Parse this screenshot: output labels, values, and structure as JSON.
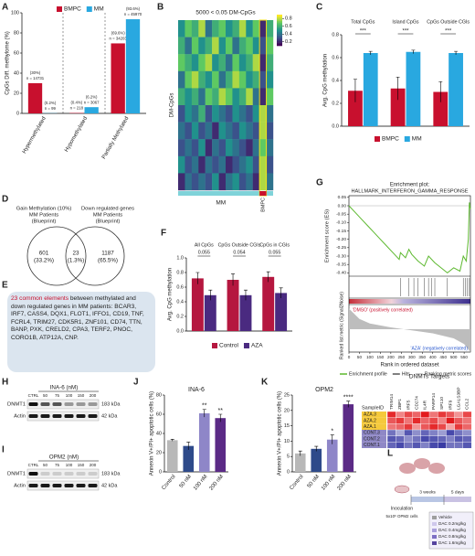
{
  "panel_letters": [
    "A",
    "B",
    "C",
    "D",
    "E",
    "F",
    "G",
    "H",
    "I",
    "J",
    "K",
    "L"
  ],
  "chart_data": [
    {
      "type": "bar",
      "ylabel": "CpGs Diff. methylome (%)",
      "categories": [
        "Hypermethylated",
        "Hypomethylated",
        "Partially Methylated"
      ],
      "series": [
        {
          "name": "BMPC",
          "color": "#c8102e",
          "values": [
            30,
            0.4,
            69.6
          ],
          "value_labels": [
            "(30%)",
            "(0.4%)",
            "(69.6%)"
          ],
          "counts": [
            "n = 14731",
            "n = 218",
            "n = 34203"
          ]
        },
        {
          "name": "MM",
          "color": "#29a8e0",
          "values": [
            0.2,
            6.2,
            93.6
          ],
          "value_labels": [
            "(0.2%)",
            "(6.2%)",
            "(93.6%)"
          ],
          "counts": [
            "n = 99",
            "n = 3067",
            "n = 45970"
          ]
        }
      ],
      "ylim": [
        0,
        100
      ],
      "yticks": [
        0,
        20,
        40,
        60,
        80,
        100
      ]
    },
    {
      "type": "bar",
      "ylabel": "Avg. CpG methylation",
      "categories": [
        "Total CpGs",
        "Island CpGs",
        "CpGs Outside CGIs"
      ],
      "series": [
        {
          "name": "BMPC",
          "color": "#c8102e",
          "values": [
            0.31,
            0.33,
            0.3
          ],
          "errors": [
            0.1,
            0.1,
            0.09
          ]
        },
        {
          "name": "MM",
          "color": "#29a8e0",
          "values": [
            0.64,
            0.65,
            0.64
          ],
          "errors": [
            0.015,
            0.015,
            0.015
          ]
        }
      ],
      "ylim": [
        0,
        0.8
      ],
      "yticks": [
        {
          "value": 0,
          "label": "0.0"
        },
        0.2,
        0.4,
        0.6,
        0.8
      ],
      "significance": [
        "***",
        "***",
        "***"
      ]
    },
    {
      "type": "bar",
      "ylabel": "Avg. CpG methylation",
      "categories": [
        "All CpGs",
        "CpGs Outside CGIs",
        "CpGs in CGIs"
      ],
      "series": [
        {
          "name": "Control",
          "color": "#b5173f",
          "values": [
            0.72,
            0.7,
            0.74
          ],
          "errors": [
            0.08,
            0.08,
            0.07
          ]
        },
        {
          "name": "AZA",
          "color": "#4a2a80",
          "values": [
            0.49,
            0.49,
            0.52
          ],
          "errors": [
            0.07,
            0.07,
            0.07
          ]
        }
      ],
      "ylim": [
        0,
        1
      ],
      "yticks": [
        {
          "value": 0,
          "label": "0.0"
        },
        0.2,
        0.4,
        0.6,
        0.8,
        {
          "value": 1,
          "label": "1.0"
        }
      ],
      "pvalues": [
        "0.055",
        "0.054",
        "0.055"
      ]
    },
    {
      "type": "gsea",
      "title": "Enrichment plot:",
      "subtitle": "HALLMARK_INTERFERON_GAMMA_RESPONSE",
      "ylabel": "Enrichment score (ES)",
      "ylabel2": "Ranked list metric (Signal2Noise)",
      "xlabel": "Rank in ordered dataset",
      "color": "#5cb82e",
      "x": [
        0,
        30,
        60,
        90,
        120,
        150,
        180,
        210,
        240,
        246,
        270,
        286,
        300,
        330,
        360,
        380,
        410,
        440,
        470,
        500,
        530,
        546,
        560,
        570,
        575,
        580
      ],
      "values": [
        0,
        -0.04,
        -0.08,
        -0.12,
        -0.16,
        -0.2,
        -0.24,
        -0.28,
        -0.32,
        -0.28,
        -0.31,
        -0.26,
        -0.29,
        -0.33,
        -0.36,
        -0.3,
        -0.34,
        -0.37,
        -0.4,
        -0.37,
        -0.39,
        -0.3,
        -0.33,
        -0.2,
        0.02,
        -0.02
      ],
      "hits": [
        246,
        286,
        310,
        330,
        360,
        380,
        395,
        410,
        470,
        546,
        555,
        565,
        575
      ],
      "ranked_x": [
        0,
        50,
        100,
        200,
        300,
        400,
        500,
        550,
        580
      ],
      "ranked_values": [
        0.9,
        0.45,
        0.25,
        0.08,
        -0.05,
        -0.18,
        -0.4,
        -0.65,
        -1
      ],
      "ranked_ylim": [
        -1,
        1
      ],
      "xlim": [
        0,
        580
      ],
      "xticks": [
        0,
        50,
        100,
        150,
        200,
        250,
        300,
        350,
        400,
        450,
        500,
        550
      ],
      "ylim": [
        -0.42,
        0.06
      ],
      "yticks": [
        0.05,
        {
          "value": 0,
          "label": "0.00"
        },
        -0.05,
        {
          "value": -0.1,
          "label": "-0.10"
        },
        -0.15,
        {
          "value": -0.2,
          "label": "-0.20"
        },
        -0.25,
        {
          "value": -0.3,
          "label": "-0.30"
        },
        -0.35,
        {
          "value": -0.4,
          "label": "-0.40"
        }
      ],
      "pos_label": "'DMSO' (positively correlated)",
      "neg_label": "'AZA' (negatively correlated)",
      "legend": [
        "Enrichment profile",
        "Hits",
        "Ranking metric scores"
      ]
    },
    {
      "type": "bar",
      "title": "INA-6",
      "ylabel": "Annexin V+/PI+ apoptotic cells (%)",
      "categories": [
        "Control",
        "50 nM",
        "100 nM",
        "200 nM"
      ],
      "series": [
        {
          "colors": [
            "#b8b8b8",
            "#2e4a8a",
            "#8e86c8",
            "#5b2a86"
          ],
          "values": [
            33,
            27,
            61,
            56
          ],
          "errors": [
            1,
            4,
            4,
            4
          ]
        }
      ],
      "ylim": [
        0,
        80
      ],
      "yticks": [
        0,
        20,
        40,
        60,
        80
      ],
      "significance": [
        null,
        null,
        "**",
        "**"
      ]
    },
    {
      "type": "bar",
      "title": "OPM2",
      "ylabel": "Annexin V+/PI+ apoptotic cells (%)",
      "categories": [
        "Control",
        "50 nM",
        "100 nM",
        "200 nM"
      ],
      "series": [
        {
          "colors": [
            "#b8b8b8",
            "#2e4a8a",
            "#8e86c8",
            "#5b2a86"
          ],
          "values": [
            6,
            7.5,
            10.5,
            22
          ],
          "errors": [
            0.8,
            0.8,
            1.5,
            1
          ]
        }
      ],
      "ylim": [
        0,
        25
      ],
      "yticks": [
        0,
        5,
        10,
        15,
        20,
        25
      ],
      "significance": [
        null,
        null,
        "*",
        "****"
      ]
    },
    {
      "type": "heatmap",
      "title": "5000 < 0.05 DM-CpGs",
      "ylabel": "DM-CpGs",
      "group_labels": [
        "MM",
        "BMPC"
      ],
      "colormap": [
        "#440154",
        "#3b528b",
        "#21918c",
        "#5ec962",
        "#fde725"
      ],
      "zlim": [
        0.1,
        0.9
      ],
      "zticks": [
        0.2,
        0.4,
        0.6,
        0.8
      ],
      "matrix": [
        [
          0.5,
          0.7,
          0.6,
          0.8,
          0.4,
          0.6,
          0.7,
          0.5,
          0.6,
          0.8,
          0.5,
          0.7,
          0.2,
          0.6
        ],
        [
          0.6,
          0.4,
          0.7,
          0.5,
          0.6,
          0.8,
          0.5,
          0.7,
          0.4,
          0.6,
          0.7,
          0.5,
          0.3,
          0.7
        ],
        [
          0.7,
          0.6,
          0.5,
          0.7,
          0.8,
          0.5,
          0.6,
          0.4,
          0.7,
          0.5,
          0.6,
          0.8,
          0.2,
          0.6
        ],
        [
          0.4,
          0.7,
          0.8,
          0.6,
          0.5,
          0.7,
          0.4,
          0.6,
          0.8,
          0.7,
          0.5,
          0.6,
          0.3,
          0.5
        ],
        [
          0.6,
          0.5,
          0.6,
          0.4,
          0.7,
          0.6,
          0.8,
          0.7,
          0.5,
          0.6,
          0.8,
          0.4,
          0.2,
          0.7
        ],
        [
          0.3,
          0.5,
          0.4,
          0.6,
          0.3,
          0.5,
          0.4,
          0.3,
          0.5,
          0.4,
          0.3,
          0.5,
          0.8,
          0.4
        ],
        [
          0.4,
          0.3,
          0.5,
          0.3,
          0.4,
          0.2,
          0.5,
          0.4,
          0.3,
          0.5,
          0.4,
          0.3,
          0.8,
          0.3
        ],
        [
          0.3,
          0.4,
          0.3,
          0.5,
          0.2,
          0.4,
          0.3,
          0.5,
          0.4,
          0.3,
          0.2,
          0.4,
          0.7,
          0.4
        ],
        [
          0.5,
          0.3,
          0.4,
          0.2,
          0.4,
          0.3,
          0.4,
          0.2,
          0.3,
          0.4,
          0.5,
          0.3,
          0.8,
          0.3
        ],
        [
          0.2,
          0.4,
          0.3,
          0.4,
          0.3,
          0.5,
          0.2,
          0.4,
          0.5,
          0.3,
          0.4,
          0.2,
          0.8,
          0.4
        ]
      ]
    },
    {
      "type": "heatmap",
      "title": "DNMTs Targets",
      "row_header": "SampleID",
      "rows": [
        "AZA.3",
        "AZA.2",
        "AZA.1",
        "CONT.3",
        "CONT.2",
        "CONT.1"
      ],
      "columns": [
        "TRIM14",
        "ZBP1",
        "IRF5",
        "CD274",
        "IL4R",
        "PARP14",
        "SP110",
        "IRF9",
        "LGALS3BP",
        "CCL2"
      ],
      "colormap": [
        "#2b2d9e",
        "#ffffff",
        "#e31a1c"
      ],
      "zlim": [
        -1.5,
        1.5
      ],
      "matrix": [
        [
          1.4,
          0.8,
          1.2,
          1.0,
          1.5,
          0.9,
          1.3,
          1.1,
          0.7,
          1.2
        ],
        [
          1.1,
          1.3,
          0.9,
          1.4,
          1.0,
          1.2,
          0.8,
          1.5,
          1.1,
          0.9
        ],
        [
          0.9,
          1.0,
          1.3,
          0.7,
          1.1,
          1.4,
          1.2,
          0.6,
          1.3,
          1.0
        ],
        [
          -1.0,
          -0.6,
          -1.2,
          -0.8,
          -1.1,
          -0.9,
          -0.7,
          -1.3,
          -1.0,
          -0.8
        ],
        [
          -1.2,
          -1.1,
          -0.8,
          -1.0,
          -1.3,
          -1.2,
          -1.1,
          -0.9,
          -1.2,
          -1.1
        ],
        [
          -1.1,
          -1.3,
          -1.0,
          -1.2,
          -0.9,
          -1.3,
          -1.4,
          -1.0,
          -1.0,
          -1.2
        ]
      ]
    }
  ],
  "venn": {
    "left_label": [
      "Gain Methylation (10%)",
      "MM Patients",
      "(Blueprint)"
    ],
    "right_label": [
      "Down regulated genes",
      "MM Patients",
      "(Blueprint)"
    ],
    "left_only": [
      "601",
      "(33.2%)"
    ],
    "overlap": [
      "23",
      "(1.3%)"
    ],
    "right_only": [
      "1187",
      "(65.5%)"
    ]
  },
  "common_box": {
    "highlight": "23 common elements",
    "text": "between methylated and down regulated genes in MM patients:",
    "genes": "BCAR3, IRF7, CASS4, DQX1, FLOT1, IFFO1, CD19, TNF, FCRL4, TRIM27, CDK5R1, ZNF101, CD74, TTN, BANP, PXK, CRELD2, CPA3, TERF2, PNOC, CORO1B, ATP12A, CNP."
  },
  "blots": [
    {
      "title": "INA-6 (nM)",
      "lanes": [
        "CTRL",
        "50",
        "75",
        "100",
        "150",
        "200"
      ],
      "proteins": [
        "DNMT1",
        "Actin"
      ],
      "sizes": [
        "183 kDa",
        "42 kDa"
      ]
    },
    {
      "title": "OPM2 (nM)",
      "lanes": [
        "CTRL",
        "50",
        "75",
        "100",
        "150",
        "200"
      ],
      "proteins": [
        "DNMT1",
        "Actin"
      ],
      "sizes": [
        "183 kDa",
        "42 kDa"
      ]
    }
  ],
  "schematic": {
    "step1": "Inoculation",
    "cells": "5x10⁶ OPM2 cells",
    "period1": "3 weeks",
    "period2": "5 days",
    "groups": [
      "Vehicle",
      "DAC 0.2mg/kg",
      "DAC 0.4mg/kg",
      "DAC 0.8mg/kg",
      "DAC 1.6mg/kg"
    ]
  }
}
